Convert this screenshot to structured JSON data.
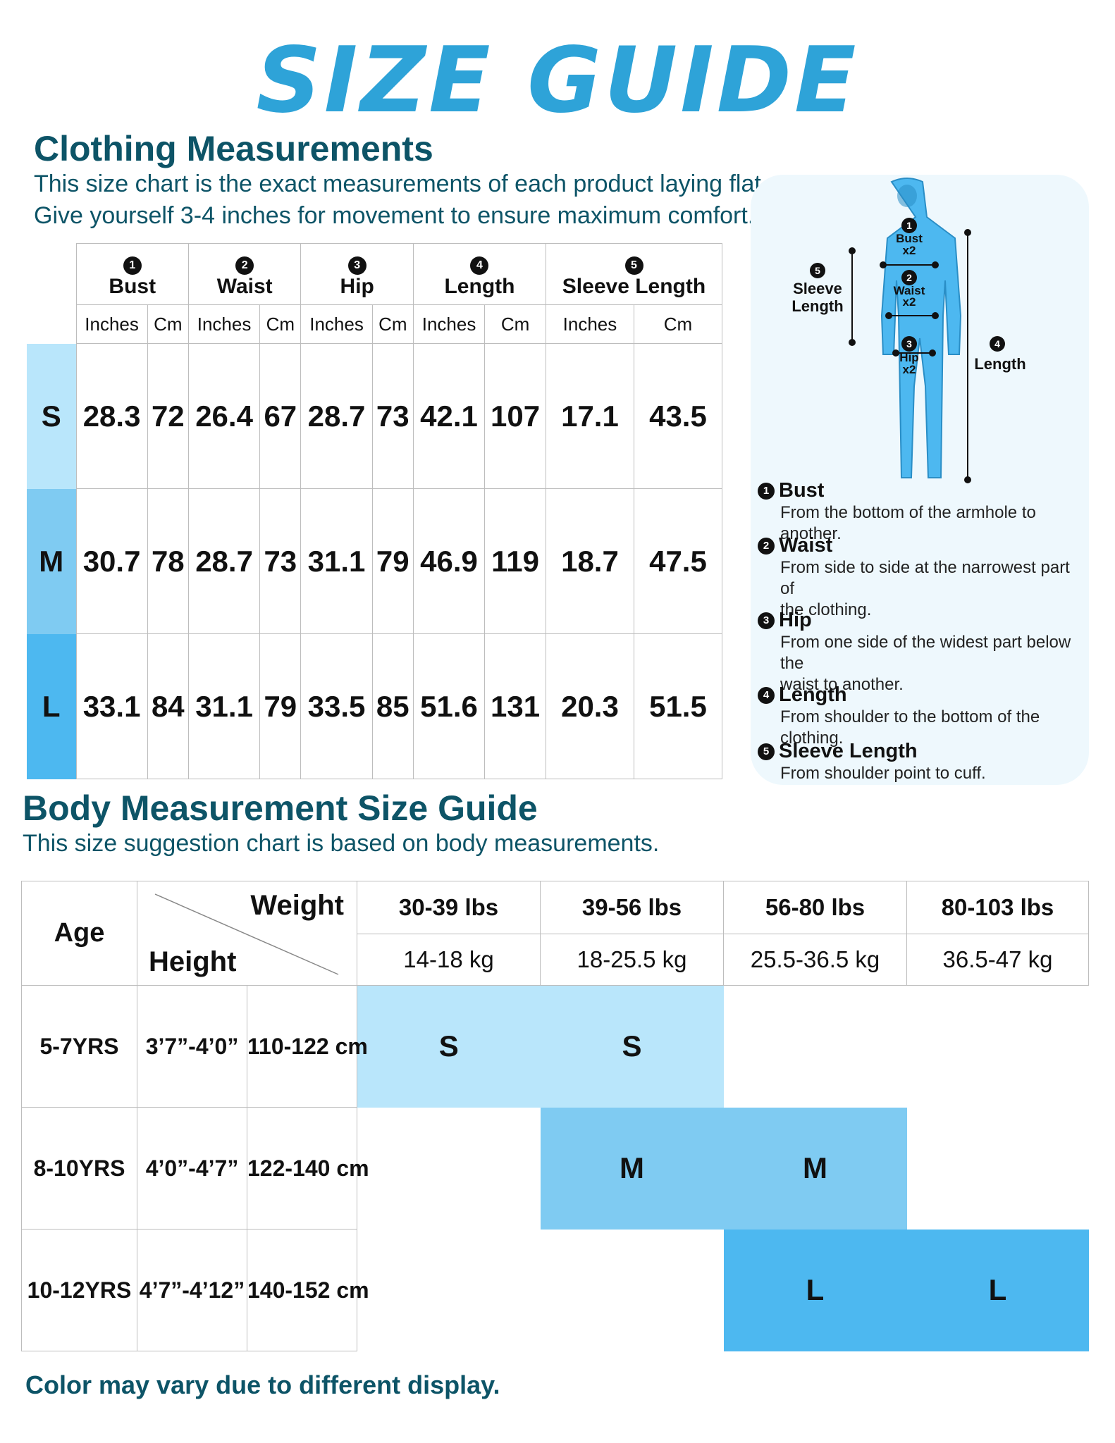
{
  "title": "SIZE GUIDE",
  "clothing": {
    "heading": "Clothing Measurements",
    "line1": "This size chart is the exact measurements of each product laying flat.",
    "line2": "Give yourself 3-4 inches for movement to ensure maximum comfort.",
    "columns": [
      {
        "num": "1",
        "label": "Bust"
      },
      {
        "num": "2",
        "label": "Waist"
      },
      {
        "num": "3",
        "label": "Hip"
      },
      {
        "num": "4",
        "label": "Length"
      },
      {
        "num": "5",
        "label": "Sleeve Length"
      }
    ],
    "unit_inches": "Inches",
    "unit_cm": "Cm",
    "rows": [
      {
        "size": "S",
        "color": "#b9e6fb",
        "values": [
          "28.3",
          "72",
          "26.4",
          "67",
          "28.7",
          "73",
          "42.1",
          "107",
          "17.1",
          "43.5"
        ]
      },
      {
        "size": "M",
        "color": "#7fcbf2",
        "values": [
          "30.7",
          "78",
          "28.7",
          "73",
          "31.1",
          "79",
          "46.9",
          "119",
          "18.7",
          "47.5"
        ]
      },
      {
        "size": "L",
        "color": "#4db8f0",
        "values": [
          "33.1",
          "84",
          "31.1",
          "79",
          "33.5",
          "85",
          "51.6",
          "131",
          "20.3",
          "51.5"
        ]
      }
    ]
  },
  "diagram": {
    "labels": {
      "bust": "Bust",
      "bust_x": "x2",
      "waist": "Waist",
      "waist_x": "x2",
      "hip": "Hip",
      "hip_x": "x2",
      "sleeve1": "Sleeve",
      "sleeve2": "Length",
      "length": "Length"
    },
    "descriptions": [
      {
        "num": "1",
        "name": "Bust",
        "lines": [
          "From the bottom of the armhole to another."
        ]
      },
      {
        "num": "2",
        "name": "Waist",
        "lines": [
          "From side to side at the narrowest part of",
          "the clothing."
        ]
      },
      {
        "num": "3",
        "name": "Hip",
        "lines": [
          "From one side of the widest part below the",
          "waist to another."
        ]
      },
      {
        "num": "4",
        "name": "Length",
        "lines": [
          "From shoulder to the bottom of the clothing."
        ]
      },
      {
        "num": "5",
        "name": "Sleeve Length",
        "lines": [
          "From shoulder point to cuff."
        ]
      }
    ]
  },
  "body": {
    "heading": "Body Measurement Size Guide",
    "sub": "This size suggestion chart is based on body measurements.",
    "age_label": "Age",
    "weight_label": "Weight",
    "height_label": "Height",
    "weights": [
      {
        "lbs": "30-39 lbs",
        "kg": "14-18 kg"
      },
      {
        "lbs": "39-56 lbs",
        "kg": "18-25.5 kg"
      },
      {
        "lbs": "56-80 lbs",
        "kg": "25.5-36.5 kg"
      },
      {
        "lbs": "80-103 lbs",
        "kg": "36.5-47 kg"
      }
    ],
    "rows": [
      {
        "age": "5-7YRS",
        "ft": "3’7”-4’0”",
        "cm": "110-122 cm",
        "cells": [
          "S",
          "S",
          "",
          ""
        ]
      },
      {
        "age": "8-10YRS",
        "ft": "4’0”-4’7”",
        "cm": "122-140 cm",
        "cells": [
          "",
          "M",
          "M",
          ""
        ]
      },
      {
        "age": "10-12YRS",
        "ft": "4’7”-4’12”",
        "cm": "140-152 cm",
        "cells": [
          "",
          "",
          "L",
          "L"
        ]
      }
    ],
    "cell_colors": {
      "S": "#b9e6fb",
      "M": "#7fcbf2",
      "L": "#4db8f0"
    }
  },
  "footer": "Color may vary due to different display."
}
